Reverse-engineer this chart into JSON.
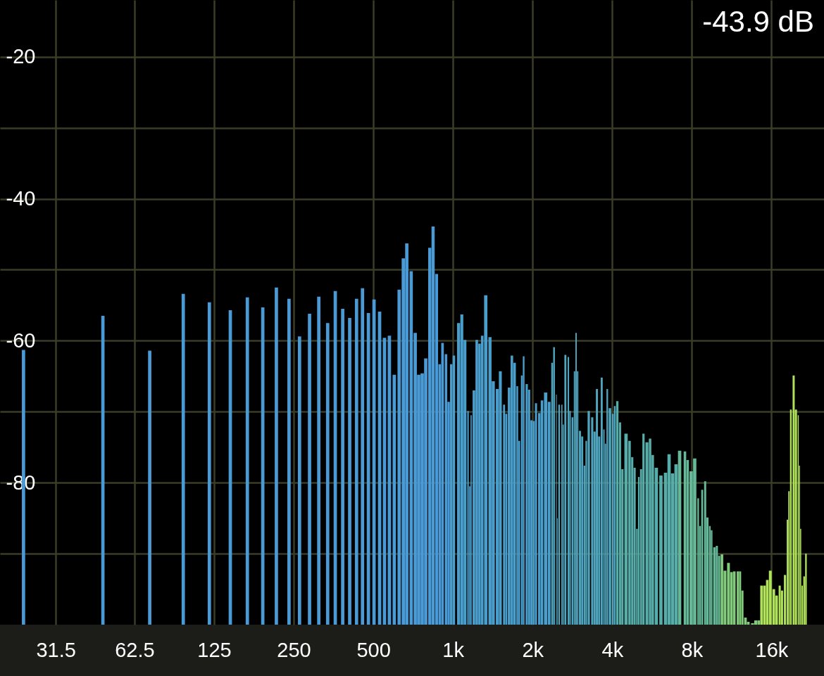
{
  "chart_data": {
    "type": "bar",
    "annotations": [
      "-43.9 dB"
    ],
    "x": [
      23.8,
      47.5,
      71.4,
      95.6,
      120,
      144,
      167,
      191,
      215,
      240,
      263,
      287,
      311,
      336,
      359,
      383,
      407,
      432,
      455,
      479,
      503,
      528,
      551,
      575,
      600,
      626,
      649,
      669,
      695,
      720,
      742,
      765,
      789,
      817,
      841,
      867,
      891,
      913,
      941,
      963,
      985,
      1008,
      1050,
      1080,
      1110,
      1140,
      1157,
      1171,
      1200,
      1230,
      1260,
      1290,
      1330,
      1380,
      1420,
      1470,
      1510,
      1560,
      1590,
      1630,
      1670,
      1710,
      1750,
      1780,
      1820,
      1850,
      1900,
      1940,
      1980,
      2020,
      2060,
      2120,
      2170,
      2240,
      2310,
      2370,
      2410,
      2460,
      2480,
      2520,
      2580,
      2610,
      2660,
      2730,
      2770,
      2830,
      2880,
      2920,
      2960,
      3020,
      3080,
      3140,
      3190,
      3260,
      3360,
      3430,
      3500,
      3570,
      3650,
      3720,
      3770,
      3830,
      3920,
      4020,
      4090,
      4180,
      4280,
      4370,
      4510,
      4650,
      4760,
      4860,
      4960,
      5040,
      5140,
      5250,
      5410,
      5560,
      5690,
      5870,
      6110,
      6360,
      6560,
      6760,
      6970,
      7190,
      7530,
      7710,
      7950,
      8200,
      8450,
      8590,
      8750,
      8980,
      9160,
      9350,
      9500,
      9730,
      9940,
      10140,
      10390,
      10670,
      11000,
      11290,
      11570,
      11930,
      12170,
      12420,
      12750,
      13070,
      13560,
      13940,
      14310,
      14670,
      15050,
      15420,
      15830,
      16320,
      16720,
      17180,
      17530,
      17990,
      18370,
      18620,
      18930,
      19400,
      19790,
      20190,
      20400,
      20620,
      20900,
      21250,
      21590
    ],
    "values": [
      38.7,
      43.5,
      38.6,
      46.6,
      45.4,
      44.3,
      46.1,
      44.7,
      47.5,
      45.9,
      40.6,
      43.8,
      46.2,
      42.5,
      47.0,
      44.5,
      43.2,
      45.9,
      47.4,
      43.9,
      45.8,
      44.1,
      40.4,
      40.7,
      35.2,
      47.2,
      51.6,
      53.7,
      49.8,
      41.1,
      35.2,
      35.4,
      37.5,
      53.1,
      56.1,
      49.4,
      36.7,
      39.7,
      38.1,
      31.4,
      36.7,
      37.9,
      42.5,
      43.7,
      40.1,
      30.1,
      19.5,
      29.5,
      33.0,
      40.1,
      39.6,
      40.7,
      46.4,
      40.5,
      34.3,
      33.2,
      35.7,
      31.0,
      29.7,
      33.4,
      37.9,
      36.9,
      33.6,
      25.9,
      35.1,
      37.8,
      33.9,
      33.1,
      28.8,
      28.7,
      31.2,
      29.8,
      31.6,
      32.7,
      31.4,
      36.9,
      39.1,
      32.4,
      15.0,
      31.0,
      31.0,
      28.2,
      38.0,
      37.7,
      30.1,
      29.2,
      35.7,
      41.1,
      35.7,
      27.3,
      26.5,
      22.4,
      25.9,
      30.1,
      29.2,
      27.2,
      33.2,
      26.5,
      34.8,
      27.5,
      25.5,
      33.2,
      30.5,
      29.7,
      30.8,
      31.5,
      28.5,
      21.9,
      26.9,
      25.9,
      23.6,
      22.1,
      13.5,
      20.8,
      21.9,
      26.9,
      25.7,
      26.2,
      23.9,
      22.1,
      21.0,
      21.4,
      24.0,
      21.3,
      22.6,
      24.5,
      24.4,
      23.2,
      21.6,
      23.4,
      17.8,
      13.9,
      19.0,
      20.2,
      15.1,
      13.9,
      13.3,
      10.9,
      11.1,
      9.7,
      9.9,
      7.6,
      8.7,
      7.4,
      7.5,
      7.5,
      7.5,
      4.8,
      1.0,
      0.4,
      0.2,
      0.6,
      0.6,
      5.5,
      5.5,
      6.3,
      7.6,
      5.0,
      4.1,
      5.5,
      4.8,
      7.0,
      14.8,
      18.8,
      30.3,
      35.1,
      30.3,
      29.5,
      22.4,
      13.5,
      5.5,
      6.8,
      10.0
    ],
    "base": [
      -100,
      -100,
      -100,
      -100,
      -100,
      -100,
      -100,
      -100,
      -100,
      -100,
      -100,
      -100,
      -100,
      -100,
      -100,
      -100,
      -100,
      -100,
      -100,
      -100,
      -100,
      -100,
      -100,
      -100,
      -100,
      -100,
      -100,
      -100,
      -100,
      -100,
      -100,
      -100,
      -100,
      -100,
      -100,
      -100,
      -100,
      -100,
      -100,
      -100,
      -100,
      -100,
      -100,
      -100,
      -100,
      -100,
      -100,
      -100,
      -100,
      -100,
      -100,
      -100,
      -100,
      -100,
      -100,
      -100,
      -100,
      -100,
      -100,
      -100,
      -100,
      -100,
      -100,
      -100,
      -100,
      -100,
      -100,
      -100,
      -100,
      -100,
      -100,
      -100,
      -100,
      -100,
      -100,
      -100,
      -100,
      -100,
      -100,
      -100,
      -100,
      -100,
      -100,
      -100,
      -100,
      -100,
      -100,
      -100,
      -100,
      -100,
      -100,
      -100,
      -100,
      -100,
      -100,
      -100,
      -100,
      -100,
      -100,
      -100,
      -100,
      -100,
      -100,
      -100,
      -100,
      -100,
      -100,
      -100,
      -100,
      -100,
      -100,
      -100,
      -100,
      -100,
      -100,
      -100,
      -100,
      -100,
      -100,
      -100,
      -100,
      -100,
      -100,
      -100,
      -100,
      -100,
      -100,
      -100,
      -100,
      -100,
      -100,
      -100,
      -100,
      -100,
      -100,
      -100,
      -100,
      -100,
      -100,
      -100,
      -100,
      -100,
      -100,
      -100,
      -100,
      -100,
      -100,
      -100,
      -100,
      -100,
      -100,
      -100,
      -100,
      -100,
      -100,
      -100,
      -100,
      -100,
      -100,
      -100,
      -100,
      -100,
      -100,
      -100,
      -100,
      -100,
      -100,
      -100,
      -100,
      -100,
      -100,
      -100,
      -100
    ],
    "colors": [
      "#4a9ad6",
      "#4a9ad6",
      "#4a9ad6",
      "#4a9ad6",
      "#4a9ad6",
      "#4a9ad6",
      "#4a9ad6",
      "#4a9ad6",
      "#4a9ad6",
      "#4a9ad6",
      "#4a9ad6",
      "#4a9ad6",
      "#4a9ad6",
      "#4a9ad6",
      "#4a9ad6",
      "#4a9ad6",
      "#4a9ad6",
      "#4a9ad6",
      "#4a9ad6",
      "#4a9ad6",
      "#4a9ad6",
      "#4a9ad6",
      "#4a9ad6",
      "#4a9ad6",
      "#4a9ad6",
      "#4a9ad6",
      "#4a9ad6",
      "#4a9ad6",
      "#4a9ad6",
      "#4a9ad6",
      "#4a9ad6",
      "#4a9ad6",
      "#4a9ad6",
      "#4a9ad6",
      "#4a9ad6",
      "#4a9ad6",
      "#4a9ad6",
      "#4a9ad6",
      "#4a9ad6",
      "#4a9ad6",
      "#4a9ecc",
      "#4a9ecc",
      "#4a9ecc",
      "#4a9ecc",
      "#4a9ecc",
      "#4a9ecc",
      "#4a9ecc",
      "#4a9ecc",
      "#4a9ecc",
      "#4a9ecc",
      "#4a9ecc",
      "#4a9ecc",
      "#4a9ecc",
      "#4a9ecc",
      "#4a9ecc",
      "#4a9ecc",
      "#4a9ecc",
      "#4a9ecc",
      "#4a9ecc",
      "#4a9ecc",
      "#4a9ecc",
      "#4a9ecc",
      "#4a9ecc",
      "#4a9ecc",
      "#4a9ecc",
      "#4a9ecc",
      "#4a9ecc",
      "#4a9ecc",
      "#4a9ecc",
      "#4a9ecc",
      "#4a9ecc",
      "#4a9ecc",
      "#4a9ecc",
      "#4a9ecc",
      "#4a9ecc",
      "#4fa5be",
      "#4fa5be",
      "#4fa5be",
      "#4fa5be",
      "#4fa5be",
      "#4fa5be",
      "#4fa5be",
      "#4fa5be",
      "#4fa5be",
      "#4fa5be",
      "#4fa5be",
      "#4fa5be",
      "#4fa5be",
      "#4fa5be",
      "#4fa5be",
      "#4fa5be",
      "#4fa5be",
      "#4fa5be",
      "#4fa5be",
      "#4fa5be",
      "#4fa5be",
      "#4fa5be",
      "#4fa5be",
      "#4fa5be",
      "#4fa5be",
      "#4fa5be",
      "#4fa5be",
      "#4fa5be",
      "#4fa5be",
      "#4fa5be",
      "#57adaa",
      "#57adaa",
      "#57adaa",
      "#57adaa",
      "#57adaa",
      "#57adaa",
      "#57adaa",
      "#57adaa",
      "#57adaa",
      "#57adaa",
      "#57adaa",
      "#57adaa",
      "#57adaa",
      "#57adaa",
      "#57adaa",
      "#57adaa",
      "#57adaa",
      "#57adaa",
      "#57adaa",
      "#57adaa",
      "#66b998",
      "#66b998",
      "#66b998",
      "#66b998",
      "#66b998",
      "#66b998",
      "#66b998",
      "#66b998",
      "#66b998",
      "#66b998",
      "#66b998",
      "#66b998",
      "#66b998",
      "#66b998",
      "#66b998",
      "#82cb7c",
      "#82cb7c",
      "#82cb7c",
      "#82cb7c",
      "#82cb7c",
      "#82cb7c",
      "#82cb7c",
      "#82cb7c",
      "#82cb7c",
      "#82cb7c",
      "#82cb7c",
      "#82cb7c",
      "#82cb7c",
      "#b0e35a",
      "#b0e35a",
      "#b0e35a",
      "#b0e35a",
      "#b0e35a",
      "#b0e35a",
      "#b0e35a",
      "#b0e35a",
      "#b0e35a",
      "#b0e35a",
      "#b0e35a",
      "#b0e35a",
      "#b0e35a",
      "#b0e35a",
      "#b0e35a",
      "#b0e35a",
      "#b0e35a",
      "#b0e35a",
      "#b0e35a",
      "#b0e35a"
    ],
    "xlim": [
      20,
      24500
    ],
    "xticks": [
      31.5,
      62.5,
      125,
      250,
      500,
      {
        "value": 1000,
        "label": "1k"
      },
      {
        "value": 2000,
        "label": "2k"
      },
      {
        "value": 4000,
        "label": "4k"
      },
      {
        "value": 8000,
        "label": "8k"
      },
      {
        "value": 16000,
        "label": "16k"
      }
    ],
    "ylim": [
      -100,
      -12
    ],
    "yticks": [
      {
        "value": -90,
        "label": null
      },
      -80,
      {
        "value": -70,
        "label": null
      },
      -60,
      {
        "value": -50,
        "label": null
      },
      -40,
      {
        "value": -30,
        "label": null
      },
      -20
    ],
    "log": "x",
    "grid": true
  }
}
